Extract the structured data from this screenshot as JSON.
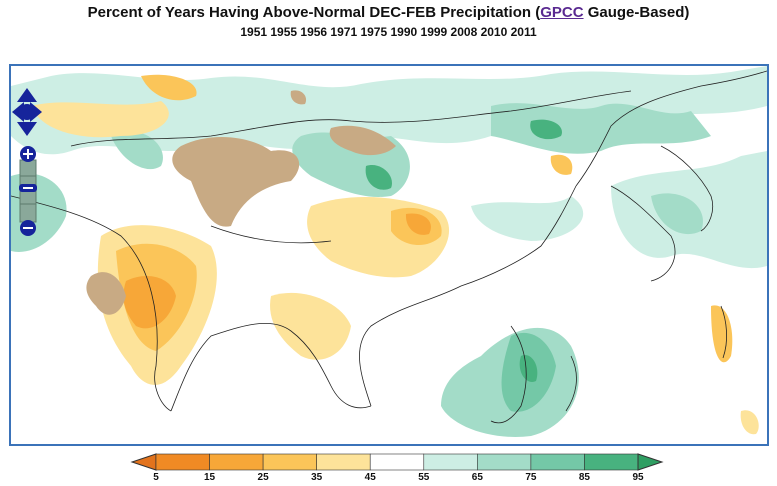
{
  "title": {
    "prefix": "Percent of Years Having Above-Normal DEC-FEB Precipitation (",
    "link": "GPCC",
    "suffix": " Gauge-Based)"
  },
  "subtitle": "1951 1955 1956 1971 1975 1990 1999 2008 2010 2011",
  "legend": {
    "ticks": [
      "5",
      "15",
      "25",
      "35",
      "45",
      "55",
      "65",
      "75",
      "85",
      "95"
    ],
    "colors": {
      "below_lt5": "#e2731d",
      "c5_15": "#f08a24",
      "c15_25": "#f7a738",
      "c25_35": "#fbc559",
      "c35_45": "#fde39a",
      "c45_55": "#ffffff",
      "c55_65": "#cdeee4",
      "c65_75": "#a3dcc8",
      "c75_85": "#74c8a7",
      "c85_95": "#48b27f",
      "above_gt95": "#2f9e62"
    },
    "masked": "#c8aa84"
  },
  "controls": {
    "pan": "pan-arrows-icon",
    "zoom_in": "plus-icon",
    "zoom_out": "minus-icon"
  }
}
